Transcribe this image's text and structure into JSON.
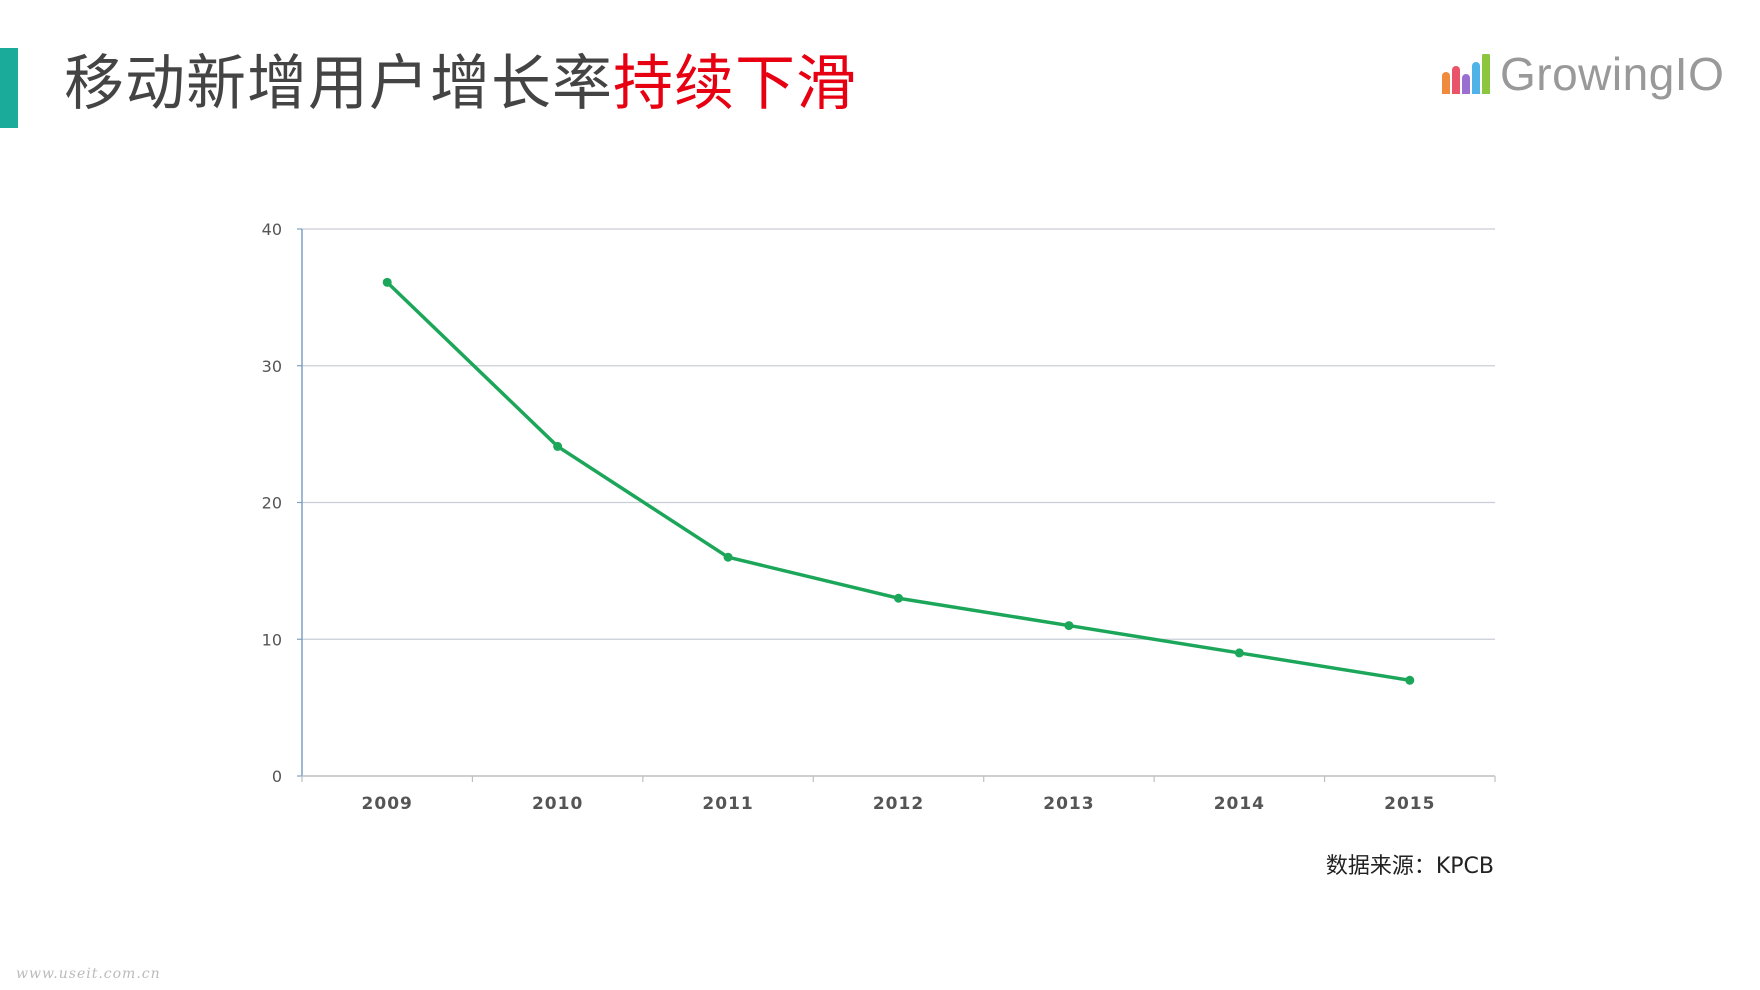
{
  "header": {
    "title_plain": "移动新增用户增长率",
    "title_highlight": "持续下滑",
    "accent_color": "#1aab9b",
    "highlight_color": "#e60012"
  },
  "logo": {
    "text": "GrowingIO",
    "icon": "bar-chart-logo-icon"
  },
  "chart_data": {
    "type": "line",
    "categories": [
      "2009",
      "2010",
      "2011",
      "2012",
      "2013",
      "2014",
      "2015"
    ],
    "series": [
      {
        "values": [
          36.1,
          24.1,
          16.0,
          13.0,
          11.0,
          9.0,
          7.0
        ],
        "color": "#1ca65a"
      }
    ],
    "ylim": [
      0,
      40
    ],
    "yticks": [
      0,
      10,
      20,
      30,
      40
    ],
    "grid": true
  },
  "source": {
    "text": "数据来源：KPCB"
  },
  "watermark": {
    "text": "www.useit.com.cn"
  }
}
